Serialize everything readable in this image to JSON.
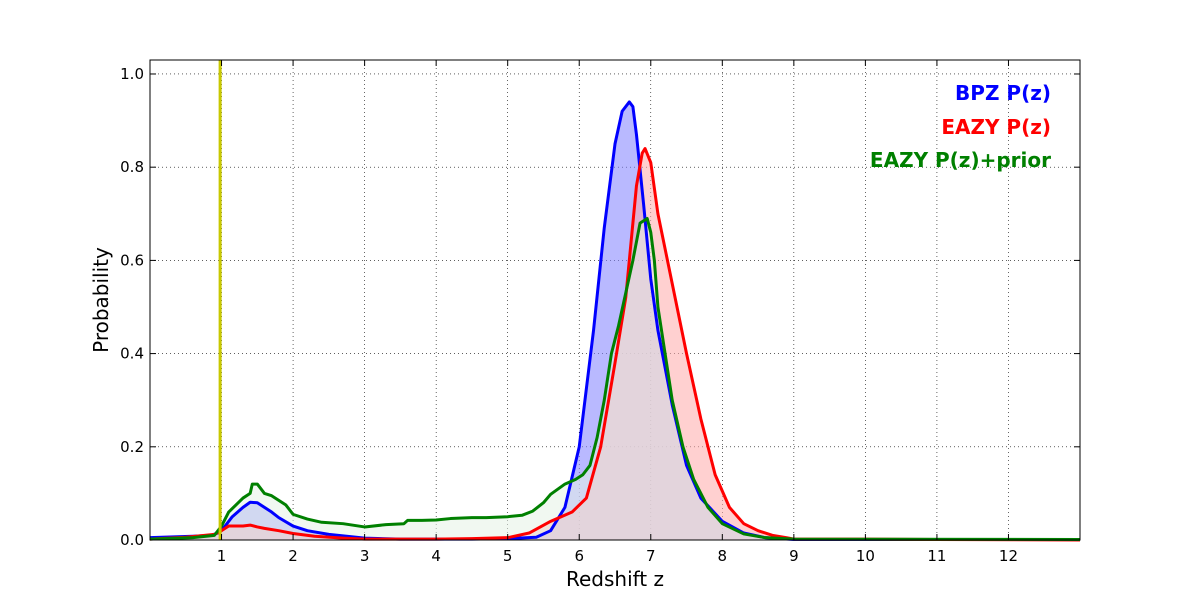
{
  "chart_data": {
    "type": "area",
    "title": "",
    "xlabel": "Redshift z",
    "ylabel": "Probability",
    "xlim": [
      0,
      13
    ],
    "ylim": [
      0,
      1.03
    ],
    "xticks": [
      1,
      2,
      3,
      4,
      5,
      6,
      7,
      8,
      9,
      10,
      11,
      12
    ],
    "xtick_labels": [
      "1",
      "2",
      "3",
      "4",
      "5",
      "6",
      "7",
      "8",
      "9",
      "10",
      "11",
      "12"
    ],
    "yticks": [
      0,
      0.2,
      0.4,
      0.6,
      0.8,
      1.0
    ],
    "ytick_labels": [
      "0.0",
      "0.2",
      "0.4",
      "0.6",
      "0.8",
      "1.0"
    ],
    "grid": true,
    "legend_position": "top-right",
    "reference_line": {
      "x": 0.98,
      "color": "#c8c800"
    },
    "series": [
      {
        "name": "BPZ P(z)",
        "color": "#0000ff",
        "fill": "#7f7fff",
        "points": [
          [
            0,
            0.005
          ],
          [
            0.6,
            0.008
          ],
          [
            0.85,
            0.01
          ],
          [
            0.95,
            0.015
          ],
          [
            1.05,
            0.03
          ],
          [
            1.15,
            0.05
          ],
          [
            1.3,
            0.07
          ],
          [
            1.4,
            0.081
          ],
          [
            1.5,
            0.08
          ],
          [
            1.6,
            0.07
          ],
          [
            1.7,
            0.06
          ],
          [
            1.8,
            0.048
          ],
          [
            2.0,
            0.03
          ],
          [
            2.2,
            0.02
          ],
          [
            2.5,
            0.012
          ],
          [
            3.0,
            0.004
          ],
          [
            3.5,
            0.002
          ],
          [
            4.0,
            0.002
          ],
          [
            4.5,
            0.002
          ],
          [
            5.0,
            0.003
          ],
          [
            5.4,
            0.006
          ],
          [
            5.6,
            0.02
          ],
          [
            5.8,
            0.07
          ],
          [
            6.0,
            0.2
          ],
          [
            6.2,
            0.45
          ],
          [
            6.35,
            0.67
          ],
          [
            6.5,
            0.85
          ],
          [
            6.6,
            0.92
          ],
          [
            6.7,
            0.94
          ],
          [
            6.75,
            0.93
          ],
          [
            6.8,
            0.87
          ],
          [
            6.9,
            0.72
          ],
          [
            7.0,
            0.56
          ],
          [
            7.1,
            0.45
          ],
          [
            7.2,
            0.37
          ],
          [
            7.3,
            0.29
          ],
          [
            7.5,
            0.16
          ],
          [
            7.7,
            0.09
          ],
          [
            8.0,
            0.04
          ],
          [
            8.3,
            0.015
          ],
          [
            8.6,
            0.005
          ],
          [
            9.0,
            0.001
          ],
          [
            13,
            0.001
          ]
        ]
      },
      {
        "name": "EAZY P(z)",
        "color": "#ff0000",
        "fill": "#ffaaaa",
        "points": [
          [
            0,
            0.002
          ],
          [
            0.5,
            0.006
          ],
          [
            0.9,
            0.012
          ],
          [
            1.0,
            0.02
          ],
          [
            1.1,
            0.03
          ],
          [
            1.3,
            0.03
          ],
          [
            1.4,
            0.032
          ],
          [
            1.5,
            0.028
          ],
          [
            1.6,
            0.025
          ],
          [
            1.8,
            0.02
          ],
          [
            2.0,
            0.014
          ],
          [
            2.3,
            0.008
          ],
          [
            2.7,
            0.004
          ],
          [
            3.0,
            0.002
          ],
          [
            3.5,
            0.002
          ],
          [
            4.0,
            0.002
          ],
          [
            4.5,
            0.003
          ],
          [
            5.0,
            0.005
          ],
          [
            5.3,
            0.015
          ],
          [
            5.6,
            0.04
          ],
          [
            5.9,
            0.06
          ],
          [
            6.1,
            0.09
          ],
          [
            6.3,
            0.2
          ],
          [
            6.5,
            0.38
          ],
          [
            6.65,
            0.52
          ],
          [
            6.8,
            0.76
          ],
          [
            6.88,
            0.83
          ],
          [
            6.92,
            0.84
          ],
          [
            7.0,
            0.81
          ],
          [
            7.1,
            0.7
          ],
          [
            7.3,
            0.55
          ],
          [
            7.5,
            0.4
          ],
          [
            7.7,
            0.26
          ],
          [
            7.9,
            0.14
          ],
          [
            8.1,
            0.07
          ],
          [
            8.3,
            0.035
          ],
          [
            8.5,
            0.02
          ],
          [
            8.7,
            0.01
          ],
          [
            8.9,
            0.005
          ],
          [
            9.0,
            0.002
          ],
          [
            10,
            0.002
          ],
          [
            11,
            0.001
          ],
          [
            13,
            0.0
          ]
        ]
      },
      {
        "name": "EAZY P(z)+prior",
        "color": "#008000",
        "fill": "#e5f2e5",
        "points": [
          [
            0,
            0.002
          ],
          [
            0.6,
            0.005
          ],
          [
            0.9,
            0.01
          ],
          [
            1.0,
            0.03
          ],
          [
            1.1,
            0.06
          ],
          [
            1.2,
            0.075
          ],
          [
            1.3,
            0.09
          ],
          [
            1.4,
            0.1
          ],
          [
            1.43,
            0.12
          ],
          [
            1.5,
            0.12
          ],
          [
            1.6,
            0.1
          ],
          [
            1.7,
            0.095
          ],
          [
            1.8,
            0.085
          ],
          [
            1.9,
            0.075
          ],
          [
            2.0,
            0.055
          ],
          [
            2.2,
            0.045
          ],
          [
            2.4,
            0.038
          ],
          [
            2.7,
            0.035
          ],
          [
            3.0,
            0.028
          ],
          [
            3.3,
            0.033
          ],
          [
            3.55,
            0.035
          ],
          [
            3.6,
            0.042
          ],
          [
            3.8,
            0.042
          ],
          [
            4.0,
            0.043
          ],
          [
            4.2,
            0.046
          ],
          [
            4.5,
            0.048
          ],
          [
            4.7,
            0.048
          ],
          [
            5.0,
            0.05
          ],
          [
            5.2,
            0.053
          ],
          [
            5.35,
            0.062
          ],
          [
            5.5,
            0.08
          ],
          [
            5.6,
            0.098
          ],
          [
            5.8,
            0.12
          ],
          [
            5.95,
            0.13
          ],
          [
            6.05,
            0.14
          ],
          [
            6.15,
            0.16
          ],
          [
            6.25,
            0.22
          ],
          [
            6.35,
            0.3
          ],
          [
            6.45,
            0.4
          ],
          [
            6.55,
            0.46
          ],
          [
            6.65,
            0.53
          ],
          [
            6.75,
            0.6
          ],
          [
            6.85,
            0.68
          ],
          [
            6.95,
            0.69
          ],
          [
            7.0,
            0.66
          ],
          [
            7.05,
            0.6
          ],
          [
            7.1,
            0.5
          ],
          [
            7.2,
            0.4
          ],
          [
            7.3,
            0.3
          ],
          [
            7.45,
            0.2
          ],
          [
            7.6,
            0.13
          ],
          [
            7.8,
            0.07
          ],
          [
            8.0,
            0.035
          ],
          [
            8.3,
            0.013
          ],
          [
            8.6,
            0.005
          ],
          [
            9.0,
            0.002
          ],
          [
            13,
            0.001
          ]
        ]
      }
    ]
  }
}
